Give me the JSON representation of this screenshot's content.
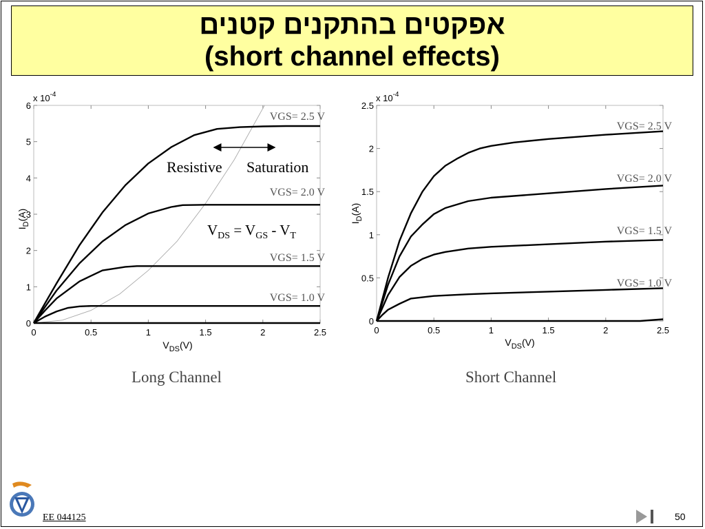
{
  "slide": {
    "title_hebrew": "אפקטים בהתקנים קטנים",
    "title_english": "(short channel effects)",
    "course_code": "EE 044125",
    "page_number": "50"
  },
  "chart_data": [
    {
      "type": "line",
      "caption": "Long Channel",
      "xlabel": "V",
      "xlabel_sub": "DS",
      "xlabel_suffix": "(V)",
      "ylabel": "I",
      "ylabel_sub": "D",
      "ylabel_suffix": "(A)",
      "y_multiplier": "x 10",
      "y_multiplier_exp": "-4",
      "xlim": [
        0,
        2.5
      ],
      "ylim": [
        0,
        6
      ],
      "x_ticks": [
        "0",
        "0.5",
        "1",
        "1.5",
        "2",
        "2.5"
      ],
      "y_ticks": [
        "0",
        "1",
        "2",
        "3",
        "4",
        "5",
        "6"
      ],
      "series": [
        {
          "name": "VGS= 2.5 V",
          "x": [
            0,
            0.1,
            0.2,
            0.4,
            0.6,
            0.8,
            1.0,
            1.2,
            1.4,
            1.6,
            1.8,
            2.0,
            2.2,
            2.5
          ],
          "y": [
            0,
            0.55,
            1.1,
            2.15,
            3.05,
            3.8,
            4.4,
            4.85,
            5.18,
            5.35,
            5.4,
            5.42,
            5.43,
            5.43
          ]
        },
        {
          "name": "VGS= 2.0 V",
          "x": [
            0,
            0.1,
            0.2,
            0.4,
            0.6,
            0.8,
            1.0,
            1.2,
            1.3,
            1.5,
            2.0,
            2.5
          ],
          "y": [
            0,
            0.45,
            0.9,
            1.65,
            2.25,
            2.7,
            3.02,
            3.2,
            3.25,
            3.26,
            3.26,
            3.26
          ]
        },
        {
          "name": "VGS= 1.5 V",
          "x": [
            0,
            0.1,
            0.2,
            0.4,
            0.6,
            0.8,
            0.9,
            1.2,
            2.5
          ],
          "y": [
            0,
            0.35,
            0.68,
            1.15,
            1.45,
            1.55,
            1.57,
            1.57,
            1.57
          ]
        },
        {
          "name": "VGS= 1.0 V",
          "x": [
            0,
            0.1,
            0.2,
            0.3,
            0.4,
            0.5,
            2.5
          ],
          "y": [
            0,
            0.18,
            0.32,
            0.42,
            0.46,
            0.47,
            0.47
          ]
        },
        {
          "name": "",
          "x": [
            0,
            2.5
          ],
          "y": [
            0,
            0
          ]
        }
      ],
      "boundary_curve": {
        "label": "V_DS = V_GS - V_T",
        "x": [
          0,
          0.25,
          0.5,
          0.75,
          1.0,
          1.25,
          1.5,
          1.75,
          2.05
        ],
        "y": [
          0,
          0.08,
          0.35,
          0.8,
          1.45,
          2.25,
          3.3,
          4.5,
          6.2
        ]
      },
      "annotations": {
        "left_region": "Resistive",
        "right_region": "Saturation",
        "boundary_text_main": "V",
        "boundary_text_sub1": "DS",
        "boundary_text_mid": " = V",
        "boundary_text_sub2": "GS",
        "boundary_text_end": " - V",
        "boundary_text_sub3": "T"
      }
    },
    {
      "type": "line",
      "caption": "Short Channel",
      "xlabel": "V",
      "xlabel_sub": "DS",
      "xlabel_suffix": "(V)",
      "ylabel": "I",
      "ylabel_sub": "D",
      "ylabel_suffix": "(A)",
      "y_multiplier": "x 10",
      "y_multiplier_exp": "-4",
      "xlim": [
        0,
        2.5
      ],
      "ylim": [
        0,
        2.5
      ],
      "x_ticks": [
        "0",
        "0.5",
        "1",
        "1.5",
        "2",
        "2.5"
      ],
      "y_ticks": [
        "0",
        "0.5",
        "1",
        "1.5",
        "2",
        "2.5"
      ],
      "series": [
        {
          "name": "VGS= 2.5 V",
          "x": [
            0,
            0.1,
            0.2,
            0.3,
            0.4,
            0.5,
            0.6,
            0.7,
            0.8,
            0.9,
            1.0,
            1.2,
            1.5,
            2.0,
            2.5
          ],
          "y": [
            0,
            0.5,
            0.93,
            1.25,
            1.5,
            1.68,
            1.8,
            1.88,
            1.95,
            2.0,
            2.03,
            2.07,
            2.11,
            2.16,
            2.2
          ]
        },
        {
          "name": "VGS= 2.0 V",
          "x": [
            0,
            0.1,
            0.2,
            0.3,
            0.4,
            0.5,
            0.6,
            0.8,
            1.0,
            1.5,
            2.0,
            2.5
          ],
          "y": [
            0,
            0.42,
            0.75,
            0.98,
            1.12,
            1.24,
            1.31,
            1.39,
            1.43,
            1.48,
            1.53,
            1.57
          ]
        },
        {
          "name": "VGS= 1.5 V",
          "x": [
            0,
            0.1,
            0.2,
            0.3,
            0.4,
            0.5,
            0.6,
            0.8,
            1.0,
            1.5,
            2.0,
            2.5
          ],
          "y": [
            0,
            0.3,
            0.51,
            0.64,
            0.72,
            0.77,
            0.8,
            0.84,
            0.86,
            0.89,
            0.92,
            0.94
          ]
        },
        {
          "name": "VGS= 1.0 V",
          "x": [
            0,
            0.05,
            0.1,
            0.2,
            0.3,
            0.5,
            0.8,
            1.0,
            1.5,
            2.0,
            2.5
          ],
          "y": [
            0,
            0.07,
            0.13,
            0.2,
            0.26,
            0.29,
            0.31,
            0.32,
            0.34,
            0.36,
            0.38
          ]
        },
        {
          "name": "",
          "x": [
            0,
            2.3,
            2.5
          ],
          "y": [
            0,
            0,
            0.02
          ]
        }
      ]
    }
  ]
}
